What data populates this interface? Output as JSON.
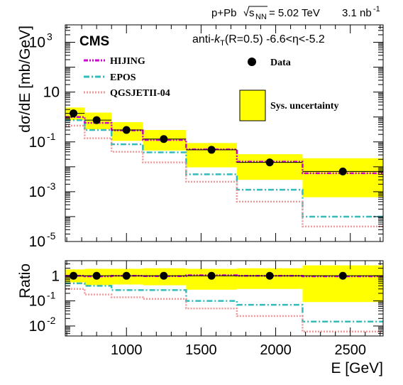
{
  "chart_data": {
    "type": "step",
    "header": {
      "system": "p+Pb",
      "energy": "= 5.02 TeV",
      "sqrt_label": "s",
      "sqrt_sub": "NN",
      "lumi": "3.1 nb",
      "lumi_exp": "-1"
    },
    "experiment": "CMS",
    "selection": {
      "pre": "anti-",
      "k": "k",
      "k_sub": "T",
      "post": "(R=0.5) -6.6<η<-5.2"
    },
    "xlabel": "E [GeV]",
    "x_ticks": [
      "1000",
      "1500",
      "2000",
      "2500"
    ],
    "x_tick_values": [
      1000,
      1500,
      2000,
      2500
    ],
    "xlim": [
      590,
      2720
    ],
    "bin_edges": [
      590,
      720,
      900,
      1110,
      1400,
      1740,
      2180,
      2720
    ],
    "bin_centers": [
      645,
      800,
      1000,
      1250,
      1570,
      1960,
      2450
    ],
    "top": {
      "ylabel": "dσ/dE [mb/GeV]",
      "yscale": "log",
      "ylim": [
        1e-05,
        5000
      ],
      "y_ticks": [
        {
          "base": "10",
          "exp": "3",
          "value": 1000
        },
        {
          "base": "10",
          "exp": "",
          "value": 10
        },
        {
          "base": "10",
          "exp": "-1",
          "value": 0.1
        },
        {
          "base": "10",
          "exp": "-3",
          "value": 0.001
        },
        {
          "base": "10",
          "exp": "-5",
          "value": 1e-05
        }
      ],
      "data": [
        1.4,
        0.75,
        0.3,
        0.13,
        0.048,
        0.015,
        0.0065
      ],
      "sys_low": [
        0.75,
        0.32,
        0.11,
        0.045,
        0.0095,
        0.003,
        0.0006
      ],
      "sys_high": [
        2.4,
        1.5,
        0.62,
        0.3,
        0.09,
        0.032,
        0.022
      ],
      "models": [
        {
          "name": "HIJING",
          "color": "#cc00cc",
          "values": [
            1.0,
            0.58,
            0.29,
            0.12,
            0.05,
            0.016,
            0.0055
          ]
        },
        {
          "name": "EPOS",
          "color": "#33bbbb",
          "values": [
            0.75,
            0.3,
            0.08,
            0.038,
            0.005,
            0.0012,
            0.0001
          ]
        },
        {
          "name": "QGSJETII-04",
          "color": "#ee9999",
          "values": [
            0.45,
            0.14,
            0.04,
            0.015,
            0.0025,
            0.0004,
            4e-05
          ]
        }
      ],
      "legend": {
        "data_label": "Data",
        "sys_label": "Sys. uncertainty"
      }
    },
    "ratio": {
      "ylabel": "Ratio",
      "yscale": "log",
      "ylim": [
        0.004,
        4
      ],
      "y_ticks": [
        {
          "base": "1",
          "exp": "",
          "value": 1
        },
        {
          "base": "10",
          "exp": "-1",
          "value": 0.1
        },
        {
          "base": "10",
          "exp": "-2",
          "value": 0.01
        }
      ],
      "data": [
        1,
        1,
        1,
        1,
        1,
        1,
        1
      ],
      "sys_low": [
        0.55,
        0.42,
        0.45,
        0.42,
        0.28,
        0.3,
        0.09
      ],
      "sys_high": [
        1.8,
        1.9,
        1.9,
        2.0,
        1.9,
        2.0,
        2.6
      ],
      "models": [
        {
          "name": "HIJING",
          "color": "#cc00cc",
          "values": [
            1.0,
            0.95,
            1.0,
            0.97,
            1.05,
            1.0,
            0.95
          ]
        },
        {
          "name": "EPOS",
          "color": "#33bbbb",
          "values": [
            0.5,
            0.4,
            0.27,
            0.27,
            0.1,
            0.07,
            0.015
          ]
        },
        {
          "name": "QGSJETII-04",
          "color": "#ee9999",
          "values": [
            0.3,
            0.18,
            0.14,
            0.12,
            0.05,
            0.025,
            0.006
          ]
        }
      ]
    },
    "colors": {
      "band": "#ffff00",
      "data": "#000000"
    }
  }
}
